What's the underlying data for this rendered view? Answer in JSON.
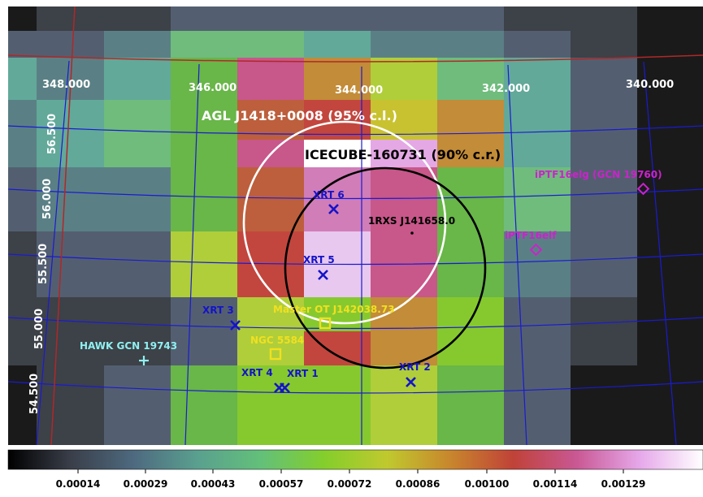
{
  "map": {
    "colors": {
      "black": "#1a1a1a",
      "dark_gray": "#3d4148",
      "slate": "#535f70",
      "slate_teal": "#5a8085",
      "teal": "#62a99a",
      "green_teal": "#6fbc7d",
      "green": "#69b649",
      "lime": "#86c92e",
      "yellow_green": "#b0ce3a",
      "olive": "#c8c231",
      "orange": "#c28c38",
      "brown_red": "#bd5f3c",
      "red": "#c2463e",
      "pink": "#c8578a",
      "magenta_pink": "#d17db8",
      "lilac": "#e4a8e5",
      "light_lilac": "#e8c8ef",
      "white": "#ffffff"
    },
    "pixel_grid": [
      [
        "black",
        "dark_gray",
        "dark_gray",
        "slate",
        "slate",
        "slate",
        "slate",
        "slate",
        "dark_gray",
        "dark_gray",
        "black"
      ],
      [
        "slate",
        "slate",
        "slate_teal",
        "green_teal",
        "green_teal",
        "teal",
        "slate_teal",
        "slate_teal",
        "slate",
        "dark_gray",
        "black"
      ],
      [
        "teal",
        "slate_teal",
        "teal",
        "green",
        "pink",
        "orange",
        "yellow_green",
        "green_teal",
        "teal",
        "slate",
        "black"
      ],
      [
        "slate_teal",
        "teal",
        "green_teal",
        "green",
        "brown_red",
        "red",
        "olive",
        "orange",
        "teal",
        "slate",
        "black"
      ],
      [
        "slate_teal",
        "teal",
        "green_teal",
        "green",
        "pink",
        "white",
        "lilac",
        "orange",
        "teal",
        "slate",
        "black"
      ],
      [
        "slate",
        "slate_teal",
        "slate_teal",
        "green",
        "brown_red",
        "magenta_pink",
        "pink",
        "green",
        "green_teal",
        "slate",
        "black"
      ],
      [
        "dark_gray",
        "slate",
        "slate",
        "yellow_green",
        "red",
        "light_lilac",
        "pink",
        "green",
        "slate_teal",
        "slate",
        "black"
      ],
      [
        "dark_gray",
        "dark_gray",
        "dark_gray",
        "slate",
        "yellow_green",
        "lime",
        "orange",
        "lime",
        "slate",
        "dark_gray",
        "black"
      ],
      [
        "dark_gray",
        "dark_gray",
        "dark_gray",
        "slate",
        "yellow_green",
        "red",
        "orange",
        "lime",
        "slate",
        "dark_gray",
        "black"
      ],
      [
        "black",
        "dark_gray",
        "slate",
        "green",
        "lime",
        "lime",
        "yellow_green",
        "green",
        "slate",
        "black",
        "black"
      ],
      [
        "black",
        "dark_gray",
        "slate",
        "green",
        "lime",
        "lime",
        "yellow_green",
        "green",
        "slate",
        "black",
        "black"
      ]
    ],
    "ra_labels": [
      "348.000",
      "346.000",
      "344.000",
      "342.000",
      "340.000"
    ],
    "dec_labels": [
      "56.500",
      "56.000",
      "55.500",
      "55.000",
      "54.500"
    ]
  },
  "annotations": {
    "agl_label": "AGL J1418+0008 (95% c.l.)",
    "icecube_label": "ICECUBE-160731 (90% c.r.)",
    "rxs_label": "1RXS J141658.0",
    "ptf_elg_label": "iPTF16elg (GCN 19760)",
    "ptf_elf_label": "iPTF16elf",
    "master_label": "Master OT J142038.73",
    "ngc_label": "NGC 5584",
    "hawk_label": "HAWK GCN 19743",
    "xrt": [
      {
        "name": "XRT 6"
      },
      {
        "name": "XRT 5"
      },
      {
        "name": "XRT 3"
      },
      {
        "name": "XRT 4"
      },
      {
        "name": "XRT 1"
      },
      {
        "name": "XRT 2"
      }
    ],
    "colors": {
      "agl": "#ffffff",
      "icecube": "#000000",
      "xrt": "#1414c8",
      "ptf": "#cc22cc",
      "master": "#f0e020",
      "hawk": "#8ff0f0"
    }
  },
  "colorbar": {
    "ticks": [
      "0.00014",
      "0.00029",
      "0.00043",
      "0.00057",
      "0.00072",
      "0.00086",
      "0.00100",
      "0.00114",
      "0.00129"
    ],
    "stops": [
      "#000000",
      "#3a3f4a",
      "#4e6a80",
      "#5aa08f",
      "#63c07a",
      "#84ce2c",
      "#c0c92e",
      "#c8862d",
      "#c04238",
      "#c95894",
      "#e6a8ea",
      "#ffffff"
    ]
  }
}
